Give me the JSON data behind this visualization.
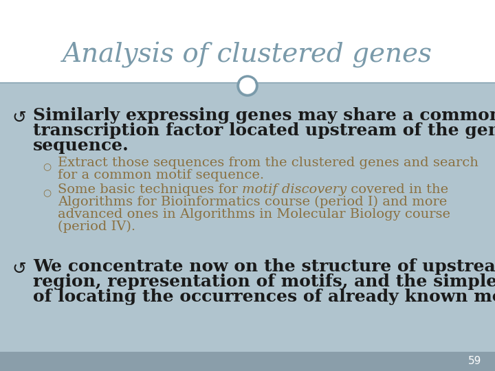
{
  "title": "Analysis of clustered genes",
  "title_color": "#7a9aaa",
  "title_fontsize": 28,
  "background_top": "#ffffff",
  "background_bottom": "#a8bfc9",
  "content_bg": "#b0c4ce",
  "separator_color": "#7a9aaa",
  "bullet1_text": "Similarly expressing genes may share a common transcription factor located upstream of the gene sequence.",
  "bullet1_color": "#1a1a1a",
  "bullet1_fontsize": 18,
  "sub_bullet_color": "#8a7040",
  "sub_bullet_fontsize": 14,
  "sub1": "Extract those sequences from the clustered genes and search for a common motif sequence.",
  "sub2_prefix": "Some basic techniques for ",
  "sub2_italic": "motif discovery",
  "sub2_suffix": " covered in the Algorithms for Bioinformatics course (period I) and more advanced ones in Algorithms in Molecular Biology course (period IV).",
  "bullet2_text": "We concentrate now on the structure of upstream region, representation of motifs, and the simple tasks of locating the occurrences of already known motifs.",
  "bullet2_color": "#1a1a1a",
  "bullet2_fontsize": 18,
  "page_number": "59",
  "page_num_color": "#ffffff",
  "circle_color": "#7a9aaa",
  "circle_fill": "#ffffff"
}
